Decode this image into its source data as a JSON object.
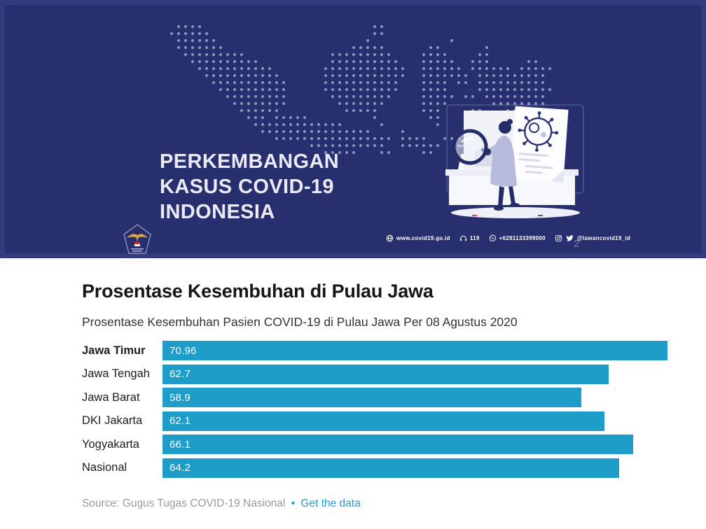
{
  "banner": {
    "title_lines": [
      "PERKEMBANGAN",
      "KASUS COVID-19",
      "INDONESIA"
    ],
    "contacts": [
      {
        "icon": "globe-icon",
        "label": "www.covid19.go.id"
      },
      {
        "icon": "headset-icon",
        "label": "119"
      },
      {
        "icon": "whatsapp-icon",
        "label": "+6281133399000"
      },
      {
        "icon": "instagram-icon twitter-icon",
        "label": "@lawancovid19_id"
      }
    ],
    "page_number": "2",
    "colors": {
      "background": "#282f6e",
      "map_dot": "#959dc0",
      "text": "#e9eaf3"
    }
  },
  "chart": {
    "title": "Prosentase Kesembuhan di Pulau Jawa",
    "subtitle": "Prosentase Kesembuhan Pasien COVID-19 di Pulau Jawa Per 08 Agustus 2020",
    "source_text": "Source: Gugus Tugas COVID-19 Nasional",
    "separator": "•",
    "link_label": "Get the data",
    "colors": {
      "bar": "#1e9dc9",
      "link": "#1f9bd8",
      "source_text": "#9a9a9a"
    }
  },
  "chart_data": {
    "type": "bar",
    "orientation": "horizontal",
    "title": "Prosentase Kesembuhan di Pulau Jawa",
    "subtitle": "Prosentase Kesembuhan Pasien COVID-19 di Pulau Jawa Per 08 Agustus 2020",
    "categories": [
      "Jawa Timur",
      "Jawa Tengah",
      "Jawa Barat",
      "DKI Jakarta",
      "Yogyakarta",
      "Nasional"
    ],
    "values": [
      70.96,
      62.7,
      58.9,
      62.1,
      66.1,
      64.2
    ],
    "value_labels": [
      "70.96",
      "62.7",
      "58.9",
      "62.1",
      "66.1",
      "64.2"
    ],
    "highlighted_category": "Jawa Timur",
    "xlim": [
      0,
      70.96
    ],
    "unit": "percent",
    "grid": false,
    "legend": null,
    "source": "Gugus Tugas COVID-19 Nasional"
  }
}
